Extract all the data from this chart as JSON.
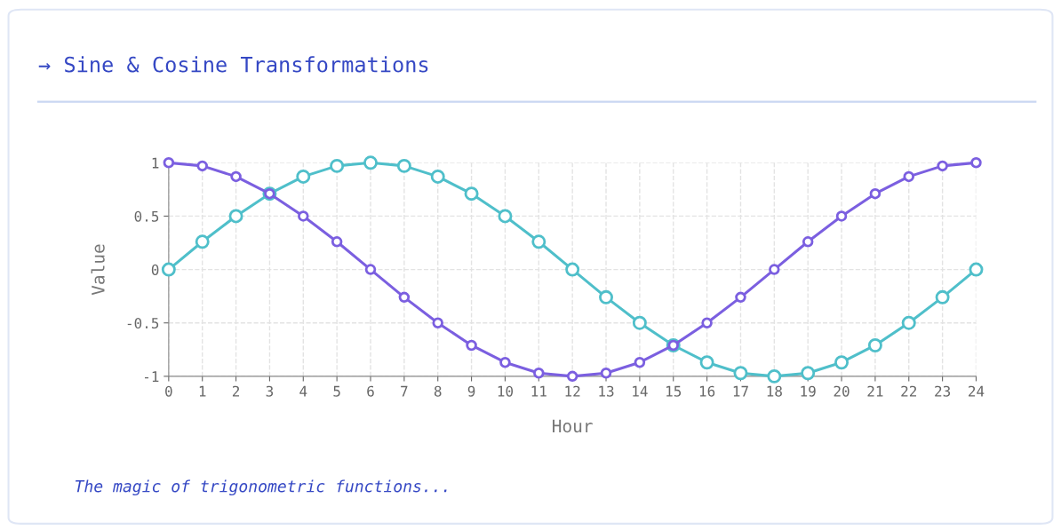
{
  "chart_data": {
    "type": "line",
    "title": "→ Sine & Cosine Transformations",
    "xlabel": "Hour",
    "ylabel": "Value",
    "x": [
      0,
      1,
      2,
      3,
      4,
      5,
      6,
      7,
      8,
      9,
      10,
      11,
      12,
      13,
      14,
      15,
      16,
      17,
      18,
      19,
      20,
      21,
      22,
      23,
      24
    ],
    "series": [
      {
        "color": "#4fbfca",
        "values": [
          0,
          0.26,
          0.5,
          0.71,
          0.87,
          0.97,
          1,
          0.97,
          0.87,
          0.71,
          0.5,
          0.26,
          0,
          -0.26,
          -0.5,
          -0.71,
          -0.87,
          -0.97,
          -1,
          -0.97,
          -0.87,
          -0.71,
          -0.5,
          -0.26,
          0
        ]
      },
      {
        "color": "#7b5fe0",
        "values": [
          1,
          0.97,
          0.87,
          0.71,
          0.5,
          0.26,
          0,
          -0.26,
          -0.5,
          -0.71,
          -0.87,
          -0.97,
          -1,
          -0.97,
          -0.87,
          -0.71,
          -0.5,
          -0.26,
          0,
          0.26,
          0.5,
          0.71,
          0.87,
          0.97,
          1
        ]
      }
    ],
    "xlim": [
      0,
      24
    ],
    "xticks": [
      0,
      1,
      2,
      3,
      4,
      5,
      6,
      7,
      8,
      9,
      10,
      11,
      12,
      13,
      14,
      15,
      16,
      17,
      18,
      19,
      20,
      21,
      22,
      23,
      24
    ],
    "ylim": [
      -1,
      1
    ],
    "yticks": [
      -1,
      -0.5,
      0,
      0.5,
      1
    ],
    "grid": true,
    "marker": "circle",
    "line_style": "solid",
    "legend": false,
    "annotations": [
      "The magic of trigonometric functions..."
    ]
  }
}
